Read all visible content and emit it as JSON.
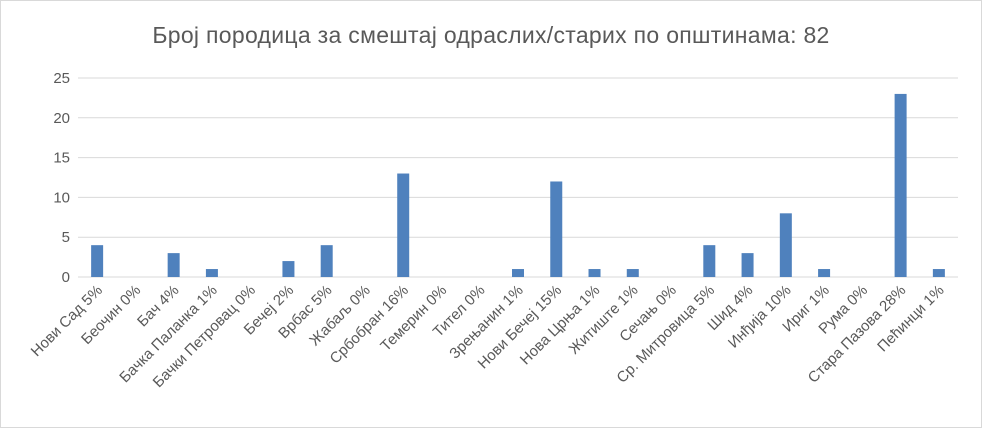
{
  "chart_data": {
    "type": "bar",
    "title": "Број породица за смештај одраслих/старих по општинама: 82",
    "xlabel": "",
    "ylabel": "",
    "ylim": [
      0,
      25
    ],
    "yticks": [
      0,
      5,
      10,
      15,
      20,
      25
    ],
    "grid": true,
    "legend": "none",
    "bar_color": "#4f81bd",
    "grid_color": "#d9d9d9",
    "categories": [
      "Нови Сад 5%",
      "Беочин 0%",
      "Бач 4%",
      "Бачка Паланка 1%",
      "Бачки Петровац 0%",
      "Бечеј 2%",
      "Врбас 5%",
      "Жабаљ 0%",
      "Србобран 16%",
      "Темерин 0%",
      "Тител 0%",
      "Зрењанин 1%",
      "Нови Бечеј 15%",
      "Нова Црња 1%",
      "Житиште 1%",
      "Сечањ 0%",
      "Ср. Митровица 5%",
      "Шид 4%",
      "Инђија 10%",
      "Ириг 1%",
      "Рума 0%",
      "Стара Пазова 28%",
      "Пећинци 1%"
    ],
    "values": [
      4,
      0,
      3,
      1,
      0,
      2,
      4,
      0,
      13,
      0,
      0,
      1,
      12,
      1,
      1,
      0,
      4,
      3,
      8,
      1,
      0,
      23,
      1
    ]
  }
}
